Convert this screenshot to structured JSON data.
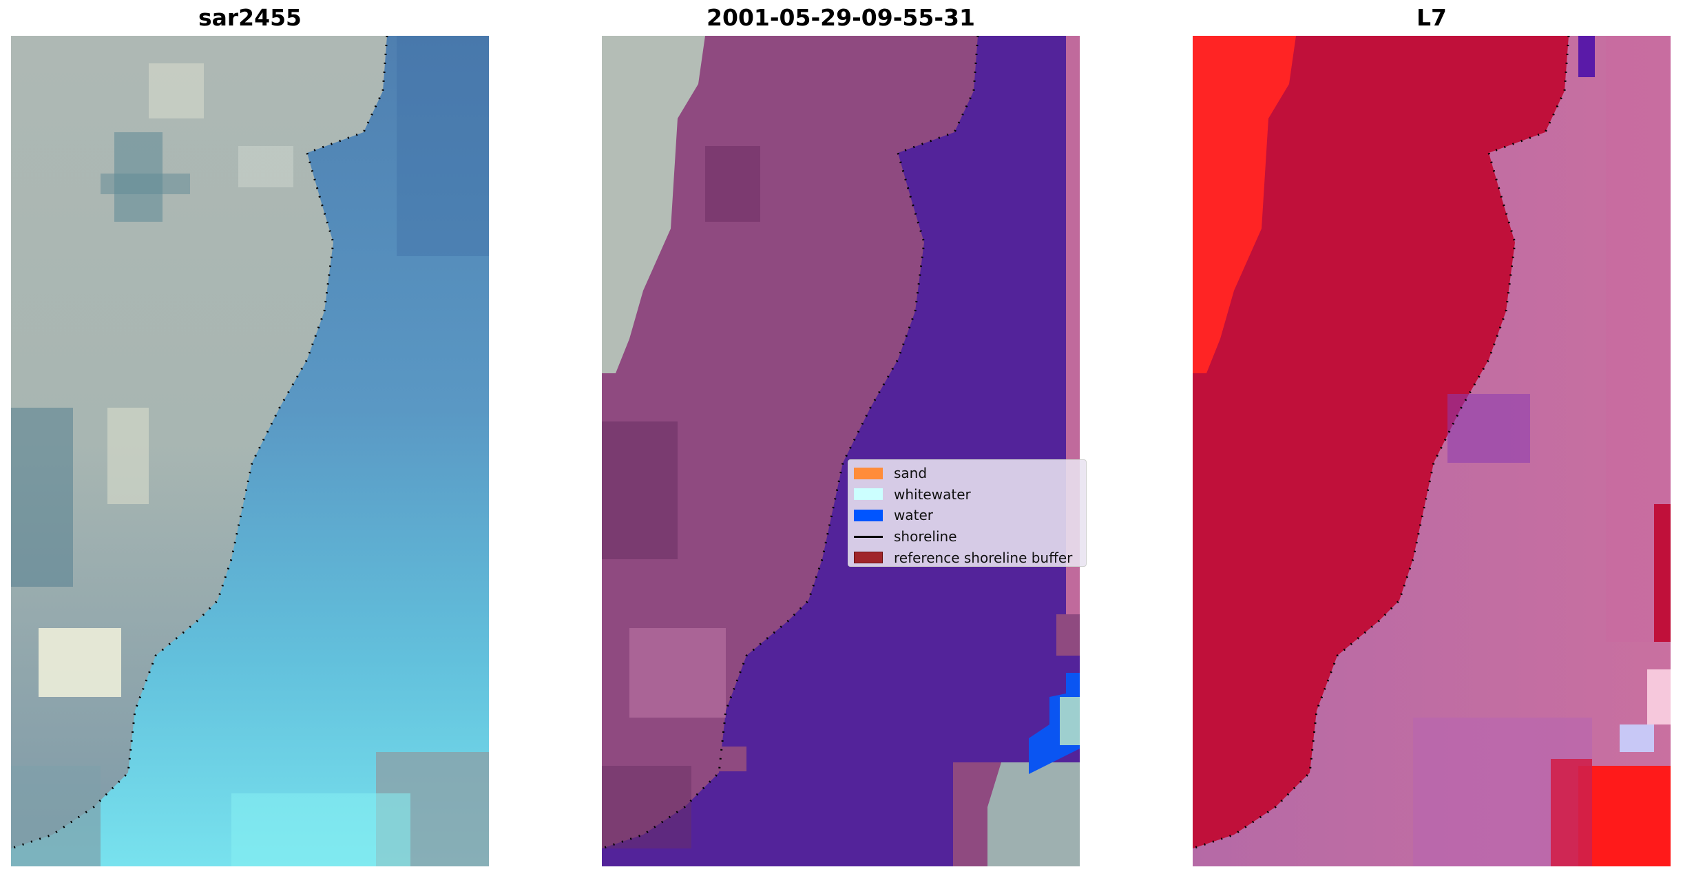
{
  "panels": [
    {
      "title": "sar2455"
    },
    {
      "title": "2001-05-29-09-55-31"
    },
    {
      "title": "L7"
    }
  ],
  "legend": {
    "items": [
      {
        "label": "sand",
        "kind": "patch",
        "color": "#ff8c3a"
      },
      {
        "label": "whitewater",
        "kind": "patch",
        "color": "#ccffff"
      },
      {
        "label": "water",
        "kind": "patch",
        "color": "#0055ff"
      },
      {
        "label": "shoreline",
        "kind": "line",
        "color": "#000000"
      },
      {
        "label": "reference shoreline buffer",
        "kind": "patch",
        "color": "#a0252a"
      }
    ]
  },
  "colors": {
    "land_rgb": "#a9b4b4",
    "sea_rgb": "#5a8fbf",
    "shallow_cyan": "#6fd6ea",
    "classified_land": "#8f4a80",
    "classified_water": "#53239a",
    "index_land": "#c0103a",
    "index_high": "#ff1a1a",
    "index_water": "#c0609a",
    "shoreline": "#000000"
  }
}
